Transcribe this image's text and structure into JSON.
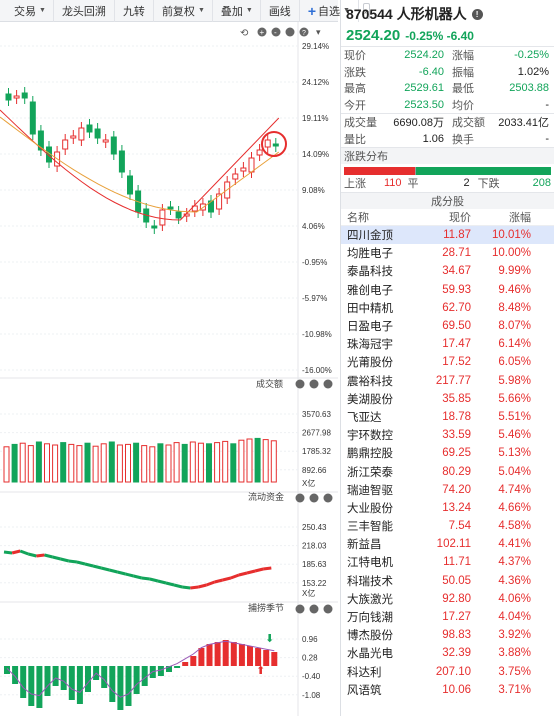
{
  "toolbar": {
    "items": [
      {
        "label": "交易",
        "dropdown": true
      },
      {
        "label": "龙头回溯",
        "dropdown": false
      },
      {
        "label": "九转",
        "dropdown": false
      },
      {
        "label": "前复权",
        "dropdown": true
      },
      {
        "label": "叠加",
        "dropdown": true
      },
      {
        "label": "画线",
        "dropdown": false
      }
    ],
    "watchlist_label": "自选",
    "more_label": "»"
  },
  "chart": {
    "main_axis": [
      "29.14%",
      "24.12%",
      "19.11%",
      "14.09%",
      "9.08%",
      "4.06%",
      "-0.95%",
      "-5.97%",
      "-10.98%",
      "-16.00%"
    ],
    "volume": {
      "title": "成交额",
      "axis": [
        "3570.63",
        "2677.98",
        "1785.32",
        "892.66"
      ],
      "unit": "X亿"
    },
    "flow": {
      "title": "流动资金",
      "axis": [
        "250.43",
        "218.03",
        "185.63",
        "153.22"
      ],
      "unit": "X亿"
    },
    "catch": {
      "title": "捕捞季节",
      "axis": [
        "0.96",
        "0.28",
        "-0.40",
        "-1.08"
      ]
    },
    "colors": {
      "up": "#e62e2e",
      "down": "#12a45a",
      "ma_short": "#e8a03a",
      "ma_long": "#e62e2e",
      "ma_mid": "#d23c3c",
      "flow_line": "#e62e2e"
    }
  },
  "quote": {
    "code_name": "870544 人形机器人",
    "price": "2524.20",
    "change_pct": "-0.25%",
    "change": "-6.40",
    "rows": [
      {
        "k1": "现价",
        "v1": "2524.20",
        "c1": "green",
        "k2": "涨幅",
        "v2": "-0.25%",
        "c2": "green"
      },
      {
        "k1": "涨跌",
        "v1": "-6.40",
        "c1": "green",
        "k2": "振幅",
        "v2": "1.02%",
        "c2": "dark"
      },
      {
        "k1": "最高",
        "v1": "2529.61",
        "c1": "green",
        "k2": "最低",
        "v2": "2503.88",
        "c2": "green"
      },
      {
        "k1": "今开",
        "v1": "2523.50",
        "c1": "green",
        "k2": "均价",
        "v2": "-",
        "c2": "dark"
      }
    ],
    "rows2": [
      {
        "k1": "成交量",
        "v1": "6690.08万",
        "c1": "dark",
        "k2": "成交额",
        "v2": "2033.41亿",
        "c2": "dark"
      },
      {
        "k1": "量比",
        "v1": "1.06",
        "c1": "dark",
        "k2": "换手",
        "v2": "-",
        "c2": "dark"
      }
    ],
    "distribution": {
      "title": "涨跌分布",
      "up_label": "上涨",
      "up": "110",
      "flat_label": "平",
      "flat": "2",
      "down_label": "下跌",
      "down": "208"
    },
    "components": {
      "title": "成分股",
      "headers": {
        "name": "名称",
        "price": "现价",
        "pct": "涨幅"
      },
      "rows": [
        {
          "name": "四川金顶",
          "price": "11.87",
          "pct": "10.01%"
        },
        {
          "name": "均胜电子",
          "price": "28.71",
          "pct": "10.00%"
        },
        {
          "name": "泰晶科技",
          "price": "34.67",
          "pct": "9.99%"
        },
        {
          "name": "雅创电子",
          "price": "59.93",
          "pct": "9.46%"
        },
        {
          "name": "田中精机",
          "price": "62.70",
          "pct": "8.48%"
        },
        {
          "name": "日盈电子",
          "price": "69.50",
          "pct": "8.07%"
        },
        {
          "name": "珠海冠宇",
          "price": "17.47",
          "pct": "6.14%"
        },
        {
          "name": "光莆股份",
          "price": "17.52",
          "pct": "6.05%"
        },
        {
          "name": "震裕科技",
          "price": "217.77",
          "pct": "5.98%"
        },
        {
          "name": "美湖股份",
          "price": "35.85",
          "pct": "5.66%"
        },
        {
          "name": "飞亚达",
          "price": "18.78",
          "pct": "5.51%"
        },
        {
          "name": "宇环数控",
          "price": "33.59",
          "pct": "5.46%"
        },
        {
          "name": "鹏鼎控股",
          "price": "69.25",
          "pct": "5.13%"
        },
        {
          "name": "浙江荣泰",
          "price": "80.29",
          "pct": "5.04%"
        },
        {
          "name": "瑞迪智驱",
          "price": "74.20",
          "pct": "4.74%"
        },
        {
          "name": "大业股份",
          "price": "13.24",
          "pct": "4.66%"
        },
        {
          "name": "三丰智能",
          "price": "7.54",
          "pct": "4.58%"
        },
        {
          "name": "新益昌",
          "price": "102.11",
          "pct": "4.41%"
        },
        {
          "name": "江特电机",
          "price": "11.71",
          "pct": "4.37%"
        },
        {
          "name": "科瑞技术",
          "price": "50.05",
          "pct": "4.36%"
        },
        {
          "name": "大族激光",
          "price": "92.80",
          "pct": "4.06%"
        },
        {
          "name": "万向钱潮",
          "price": "17.27",
          "pct": "4.04%"
        },
        {
          "name": "博杰股份",
          "price": "98.83",
          "pct": "3.92%"
        },
        {
          "name": "水晶光电",
          "price": "32.39",
          "pct": "3.88%"
        },
        {
          "name": "科达利",
          "price": "207.10",
          "pct": "3.75%"
        },
        {
          "name": "风语筑",
          "price": "10.06",
          "pct": "3.71%"
        }
      ]
    }
  }
}
